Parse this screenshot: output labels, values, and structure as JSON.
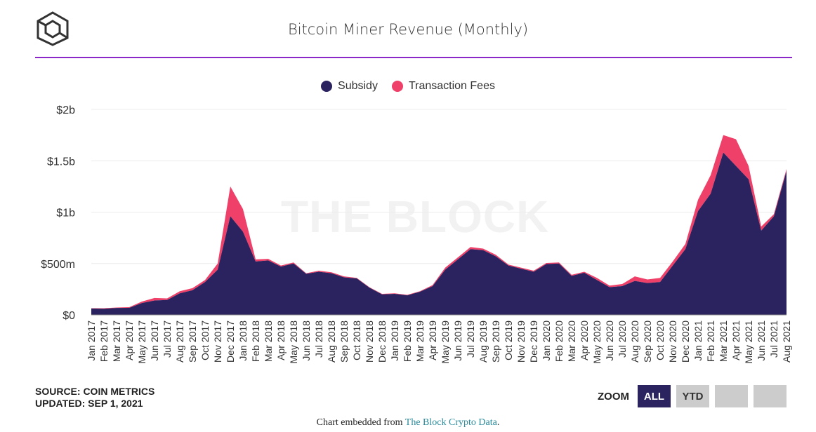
{
  "header": {
    "title": "Bitcoin Miner Revenue (Monthly)",
    "watermark": "THE BLOCK"
  },
  "colors": {
    "subsidy": "#2b2260",
    "fees": "#ee4068",
    "accent": "#8b27c8"
  },
  "chart_data": {
    "type": "area",
    "stacked": true,
    "title": "Bitcoin Miner Revenue (Monthly)",
    "legend_position": "top",
    "grid": true,
    "ylim": [
      0,
      2000
    ],
    "yunit": "$m",
    "yticks": [
      {
        "v": 0,
        "label": "$0"
      },
      {
        "v": 500,
        "label": "$500m"
      },
      {
        "v": 1000,
        "label": "$1b"
      },
      {
        "v": 1500,
        "label": "$1.5b"
      },
      {
        "v": 2000,
        "label": "$2b"
      }
    ],
    "categories": [
      "Jan 2017",
      "Feb 2017",
      "Mar 2017",
      "Apr 2017",
      "May 2017",
      "Jun 2017",
      "Jul 2017",
      "Aug 2017",
      "Sep 2017",
      "Oct 2017",
      "Nov 2017",
      "Dec 2017",
      "Jan 2018",
      "Feb 2018",
      "Mar 2018",
      "Apr 2018",
      "May 2018",
      "Jun 2018",
      "Jul 2018",
      "Aug 2018",
      "Sep 2018",
      "Oct 2018",
      "Nov 2018",
      "Dec 2018",
      "Jan 2019",
      "Feb 2019",
      "Mar 2019",
      "Apr 2019",
      "May 2019",
      "Jun 2019",
      "Jul 2019",
      "Aug 2019",
      "Sep 2019",
      "Oct 2019",
      "Nov 2019",
      "Dec 2019",
      "Jan 2020",
      "Feb 2020",
      "Mar 2020",
      "Apr 2020",
      "May 2020",
      "Jun 2020",
      "Jul 2020",
      "Aug 2020",
      "Sep 2020",
      "Oct 2020",
      "Nov 2020",
      "Dec 2020",
      "Jan 2021",
      "Feb 2021",
      "Mar 2021",
      "Apr 2021",
      "May 2021",
      "Jun 2021",
      "Jul 2021",
      "Aug 2021"
    ],
    "series": [
      {
        "name": "Subsidy",
        "values": [
          62,
          60,
          67,
          68,
          115,
          140,
          145,
          210,
          240,
          320,
          440,
          960,
          810,
          520,
          530,
          470,
          500,
          400,
          420,
          405,
          365,
          355,
          265,
          200,
          205,
          190,
          225,
          280,
          440,
          540,
          640,
          630,
          570,
          480,
          450,
          420,
          495,
          500,
          380,
          410,
          340,
          270,
          280,
          330,
          310,
          320,
          480,
          640,
          1010,
          1180,
          1580,
          1450,
          1320,
          820,
          960,
          1400
        ]
      },
      {
        "name": "Transaction Fees",
        "values": [
          3,
          5,
          5,
          7,
          15,
          25,
          15,
          20,
          20,
          20,
          60,
          290,
          220,
          20,
          15,
          10,
          10,
          5,
          10,
          10,
          10,
          5,
          5,
          5,
          5,
          5,
          5,
          10,
          20,
          20,
          20,
          15,
          15,
          10,
          10,
          10,
          10,
          10,
          10,
          10,
          20,
          15,
          20,
          45,
          35,
          40,
          40,
          50,
          110,
          180,
          170,
          260,
          130,
          40,
          20,
          20
        ]
      }
    ]
  },
  "footer": {
    "source": "SOURCE: COIN METRICS",
    "updated": "UPDATED: SEP 1, 2021",
    "zoom_label": "ZOOM",
    "zoom_all": "ALL",
    "zoom_ytd": "YTD",
    "embed_prefix": "Chart embedded from ",
    "embed_link": "The Block Crypto Data",
    "embed_suffix": "."
  }
}
